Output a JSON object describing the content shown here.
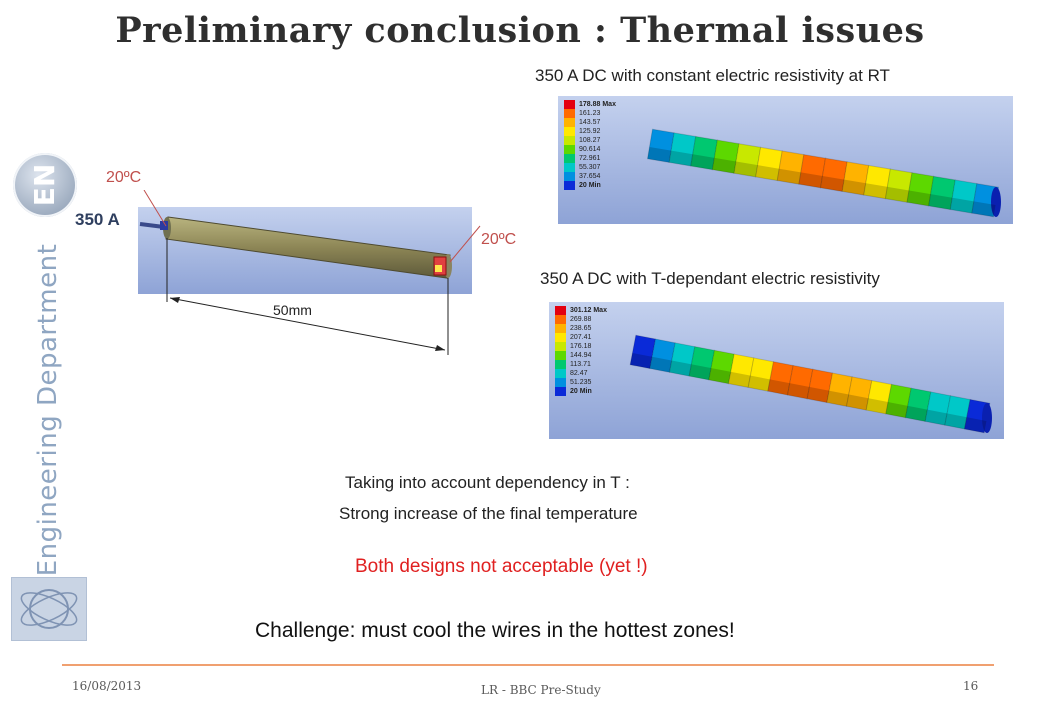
{
  "title": "Preliminary conclusion : Thermal issues",
  "sidebar": {
    "logo_text": "EN",
    "department": "Engineering Department",
    "cern_logo": "CERN"
  },
  "model": {
    "current_label": "350 A",
    "temp_left": "20ºC",
    "temp_right": "20ºC",
    "length_label": "50mm"
  },
  "sim_top": {
    "caption": "350 A DC with constant electric resistivity at RT",
    "legend": [
      "178.88 Max",
      "161.23",
      "143.57",
      "125.92",
      "108.27",
      "90.614",
      "72.961",
      "55.307",
      "37.654",
      "20 Min"
    ]
  },
  "sim_bottom": {
    "caption": "350 A DC with T-dependant electric resistivity",
    "legend": [
      "301.12 Max",
      "269.88",
      "238.65",
      "207.41",
      "176.18",
      "144.94",
      "113.71",
      "82.47",
      "51.235",
      "20 Min"
    ]
  },
  "legend_colors": [
    "#e3000f",
    "#ff6a00",
    "#ffb300",
    "#ffe800",
    "#c8e800",
    "#5dd800",
    "#00c870",
    "#00c8c8",
    "#0090e0",
    "#0a2ad8"
  ],
  "text": {
    "line1": "Taking into account dependency in T :",
    "line2": "Strong increase of the final temperature",
    "warning": "Both designs not acceptable (yet !)",
    "challenge": "Challenge: must cool the wires in the hottest zones!"
  },
  "footer": {
    "date": "16/08/2013",
    "center": "LR - BBC Pre-Study",
    "page": "16"
  }
}
